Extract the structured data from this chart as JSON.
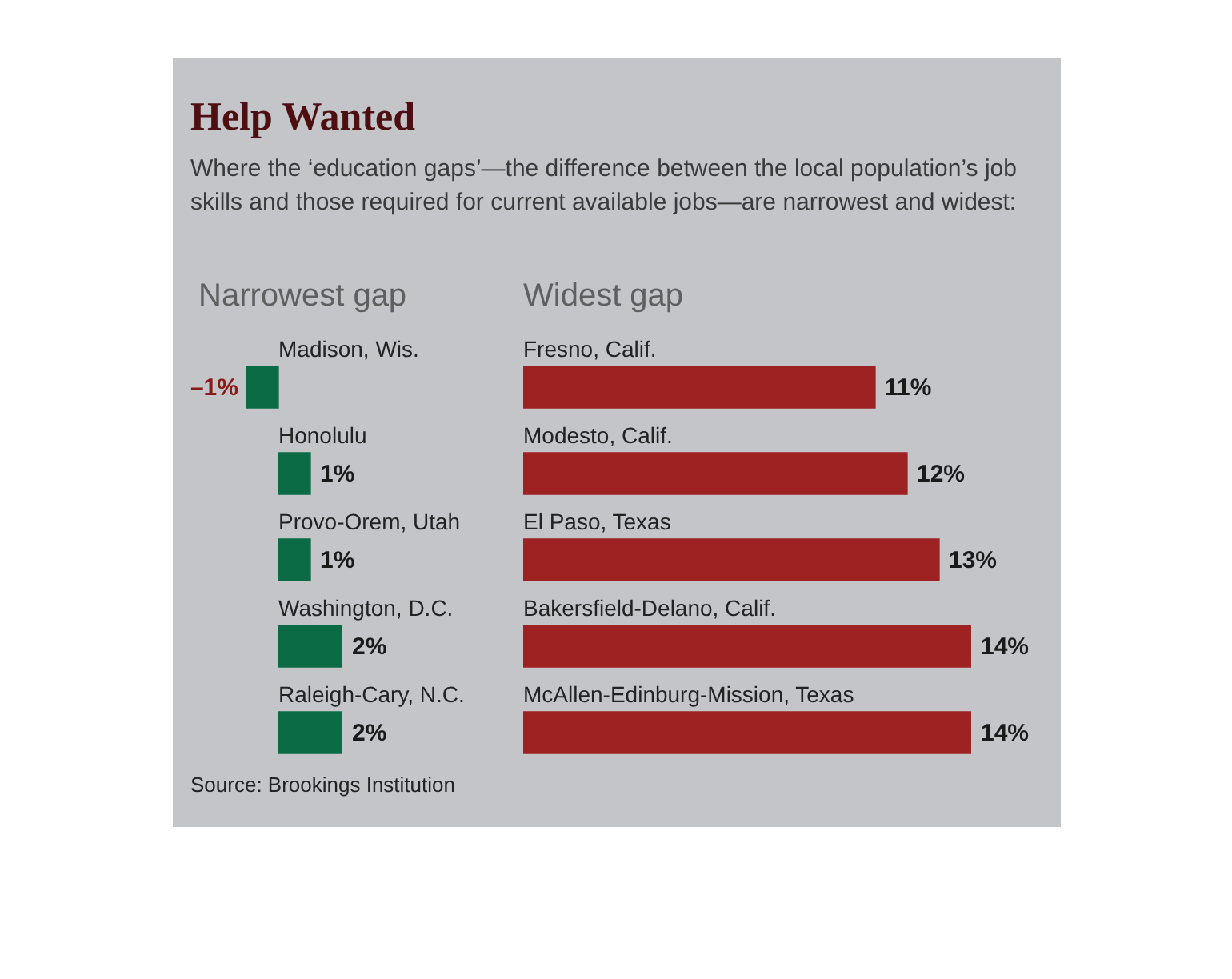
{
  "chart_data": [
    {
      "type": "other",
      "title": "Help Wanted",
      "subtitle": "Where the ‘education gaps’—the difference between the local population’s job skills and those required for current available jobs—are narrowest and widest:",
      "annotations": [
        "Source: Brookings Institution"
      ]
    },
    {
      "type": "bar",
      "orientation": "horizontal",
      "title": "Narrowest gap",
      "categories": [
        "Madison, Wis.",
        "Honolulu",
        "Provo-Orem, Utah",
        "Washington, D.C.",
        "Raleigh-Cary, N.C."
      ],
      "values": [
        -1,
        1,
        1,
        2,
        2
      ],
      "value_labels": [
        "–1%",
        "1%",
        "1%",
        "2%",
        "2%"
      ],
      "colors": [
        "#0b6b45",
        "#0b6b45",
        "#0b6b45",
        "#0b6b45",
        "#0b6b45"
      ],
      "legend": false
    },
    {
      "type": "bar",
      "orientation": "horizontal",
      "title": "Widest gap",
      "categories": [
        "Fresno, Calif.",
        "Modesto, Calif.",
        "El Paso, Texas",
        "Bakersfield-Delano, Calif.",
        "McAllen-Edinburg-Mission, Texas"
      ],
      "values": [
        11,
        12,
        13,
        14,
        14
      ],
      "value_labels": [
        "11%",
        "12%",
        "13%",
        "14%",
        "14%"
      ],
      "colors": [
        "#9e2222",
        "#9e2222",
        "#9e2222",
        "#9e2222",
        "#9e2222"
      ],
      "legend": false
    }
  ]
}
